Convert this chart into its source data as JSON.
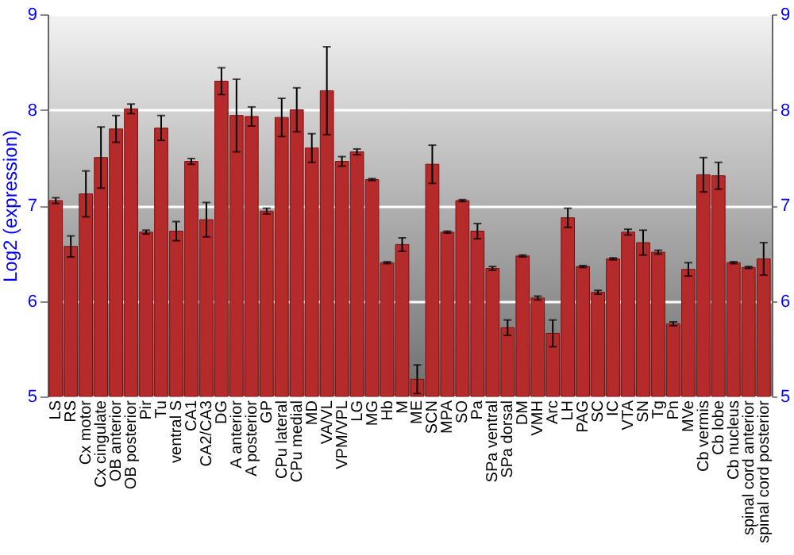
{
  "chart_data": {
    "type": "bar",
    "ylabel": "Log2 (expression)",
    "categories": [
      "LS",
      "RS",
      "Cx motor",
      "Cx cingulate",
      "OB anterior",
      "OB posterior",
      "Pir",
      "Tu",
      "ventral S",
      "CA1",
      "CA2/CA3",
      "DG",
      "A anterior",
      "A posterior",
      "GP",
      "CPu lateral",
      "CPu medial",
      "MD",
      "VA/VL",
      "VPM/VPL",
      "LG",
      "MG",
      "Hb",
      "M",
      "ME",
      "SCN",
      "MPA",
      "SO",
      "Pa",
      "SPa ventral",
      "SPa dorsal",
      "DM",
      "VMH",
      "Arc",
      "LH",
      "PAG",
      "SC",
      "IC",
      "VTA",
      "SN",
      "Tg",
      "Pn",
      "MVe",
      "Cb vermis",
      "Cb lobe",
      "Cb nucleus",
      "spinal cord anterior",
      "spinal cord posterior"
    ],
    "series": [
      {
        "color": "#b52a2a",
        "values": [
          7.05,
          6.57,
          7.12,
          7.5,
          7.8,
          8.01,
          6.72,
          7.81,
          6.73,
          7.46,
          6.85,
          8.3,
          7.94,
          7.93,
          6.94,
          7.92,
          8.0,
          7.6,
          8.2,
          7.46,
          7.56,
          7.27,
          6.4,
          6.59,
          5.18,
          7.43,
          6.72,
          7.05,
          6.73,
          6.34,
          5.72,
          6.47,
          6.03,
          5.66,
          6.87,
          6.36,
          6.09,
          6.44,
          6.72,
          6.61,
          6.51,
          5.76,
          6.33,
          7.32,
          7.31,
          6.4,
          6.35,
          6.44
        ],
        "errors": [
          0.03,
          0.11,
          0.24,
          0.32,
          0.14,
          0.05,
          0.02,
          0.13,
          0.1,
          0.03,
          0.18,
          0.14,
          0.38,
          0.1,
          0.03,
          0.2,
          0.23,
          0.15,
          0.46,
          0.05,
          0.03,
          0.01,
          0.01,
          0.07,
          0.15,
          0.2,
          0.01,
          0.01,
          0.08,
          0.02,
          0.08,
          0.01,
          0.02,
          0.14,
          0.1,
          0.01,
          0.02,
          0.01,
          0.03,
          0.13,
          0.02,
          0.02,
          0.07,
          0.18,
          0.14,
          0.01,
          0.01,
          0.17
        ]
      }
    ],
    "ylim": [
      5,
      9
    ],
    "yticks": [
      5,
      6,
      7,
      8,
      9
    ],
    "y2lim": [
      5,
      9
    ],
    "y2ticks": [
      5,
      6,
      7,
      8,
      9
    ],
    "grid": "y"
  }
}
